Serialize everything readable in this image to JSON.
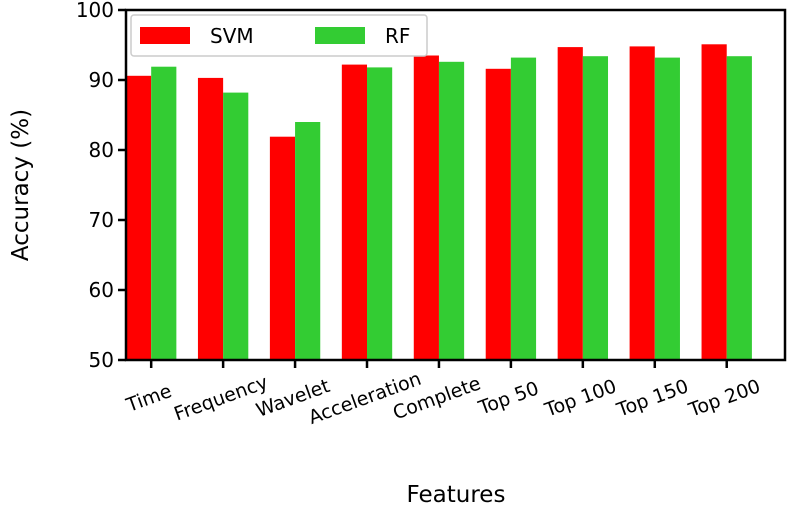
{
  "chart_data": {
    "type": "bar",
    "title": "",
    "xlabel": "Features",
    "ylabel": "Accuracy (%)",
    "ylim": [
      50,
      100
    ],
    "yticks": [
      50,
      60,
      70,
      80,
      90,
      100
    ],
    "categories": [
      "Time",
      "Frequency",
      "Wavelet",
      "Acceleration",
      "Complete",
      "Top 50",
      "Top 100",
      "Top 150",
      "Top 200"
    ],
    "series": [
      {
        "name": "SVM",
        "color": "#ff0000",
        "values": [
          90.6,
          90.3,
          81.9,
          92.2,
          93.5,
          91.6,
          94.7,
          94.8,
          95.1
        ]
      },
      {
        "name": "RF",
        "color": "#33cc33",
        "values": [
          91.9,
          88.2,
          84.0,
          91.8,
          92.6,
          93.2,
          93.4,
          93.2,
          93.4
        ]
      }
    ],
    "legend": {
      "position": "top-left",
      "columns": 2
    },
    "grid": false
  }
}
